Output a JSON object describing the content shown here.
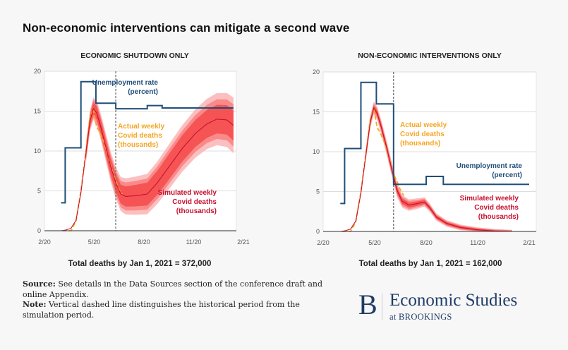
{
  "title": "Non-economic interventions can mitigate a second wave",
  "notes": {
    "source_label": "Source:",
    "source_text": " See details in the Data Sources section of the conference draft and online Appendix.",
    "note_label": "Note:",
    "note_text": " Vertical dashed line distinguishes the historical period from the simulation period."
  },
  "logo": {
    "letter": "B",
    "main": "Economic Studies",
    "sub": "at BROOKINGS"
  },
  "colors": {
    "unemployment": "#1f4e79",
    "actual": "#f5a623",
    "simulated": "#c8102e",
    "band_outer": "#fbb4b4",
    "band_mid": "#f98080",
    "band_inner": "#f44a4a",
    "grid": "#dcdcdc",
    "dashed": "#666666"
  },
  "chart_data": [
    {
      "type": "line",
      "title": "ECONOMIC SHUTDOWN ONLY",
      "footer": "Total deaths by Jan 1, 2021 = 372,000",
      "x_ticks": [
        {
          "value": 0,
          "label": "2/20"
        },
        {
          "value": 3,
          "label": "5/20"
        },
        {
          "value": 6,
          "label": "8/20"
        },
        {
          "value": 9,
          "label": "11/20"
        },
        {
          "value": 12,
          "label": "2/21"
        }
      ],
      "y_ticks": [
        0,
        5,
        10,
        15,
        20
      ],
      "xlim": [
        0,
        12
      ],
      "ylim": [
        0,
        20
      ],
      "grid": true,
      "divider_x": 4.3,
      "labels": {
        "unemployment": [
          "Unemployment rate",
          "(percent)"
        ],
        "actual": [
          "Actual weekly",
          "Covid deaths",
          "(thousands)"
        ],
        "simulated": [
          "Simulated weekly",
          "Covid deaths",
          "(thousands)"
        ]
      },
      "series": [
        {
          "name": "Unemployment rate (percent)",
          "kind": "step",
          "points": [
            [
              1.0,
              3.5
            ],
            [
              1.25,
              3.5
            ],
            [
              1.25,
              10.4
            ],
            [
              2.2,
              10.4
            ],
            [
              2.2,
              18.7
            ],
            [
              3.1,
              18.7
            ],
            [
              3.1,
              16.0
            ],
            [
              4.3,
              16.0
            ],
            [
              4.3,
              15.3
            ],
            [
              6.2,
              15.3
            ],
            [
              6.2,
              15.7
            ],
            [
              7.1,
              15.7
            ],
            [
              7.1,
              15.4
            ],
            [
              11.4,
              15.4
            ]
          ]
        },
        {
          "name": "Actual weekly Covid deaths (thousands)",
          "kind": "dashed",
          "points": [
            [
              1.1,
              0
            ],
            [
              1.6,
              0
            ],
            [
              1.9,
              1.2
            ],
            [
              2.2,
              5
            ],
            [
              2.5,
              10
            ],
            [
              2.75,
              14.2
            ],
            [
              2.95,
              15.3
            ],
            [
              3.15,
              13
            ],
            [
              3.3,
              12.5
            ],
            [
              3.6,
              11
            ],
            [
              3.9,
              8.8
            ],
            [
              4.1,
              7.5
            ],
            [
              4.3,
              6.3
            ],
            [
              4.5,
              5.2
            ],
            [
              4.7,
              4.5
            ]
          ]
        },
        {
          "name": "Simulated weekly Covid deaths (thousands)",
          "kind": "line",
          "points": [
            [
              1.0,
              0
            ],
            [
              1.3,
              0.1
            ],
            [
              1.6,
              0.3
            ],
            [
              1.9,
              1.3
            ],
            [
              2.2,
              4.8
            ],
            [
              2.5,
              9.8
            ],
            [
              2.75,
              13.8
            ],
            [
              2.95,
              15.3
            ],
            [
              3.15,
              14.8
            ],
            [
              3.4,
              13
            ],
            [
              3.7,
              10.5
            ],
            [
              4.0,
              8
            ],
            [
              4.3,
              6
            ],
            [
              4.6,
              4.6
            ],
            [
              4.9,
              4.3
            ],
            [
              5.5,
              4.4
            ],
            [
              6.2,
              4.6
            ],
            [
              6.8,
              6
            ],
            [
              7.5,
              8
            ],
            [
              8.3,
              10.3
            ],
            [
              9.1,
              12.2
            ],
            [
              9.8,
              13.4
            ],
            [
              10.4,
              14
            ],
            [
              11.0,
              13.9
            ],
            [
              11.4,
              13.2
            ]
          ],
          "band_inner": [
            0.3,
            0.6,
            1.0,
            1.5,
            1.8
          ],
          "band_mid_extra": [
            0.4,
            0.9,
            1.4,
            2.0,
            2.5
          ],
          "band_outer_extra": [
            0.6,
            1.1,
            1.8,
            2.6,
            3.3
          ]
        }
      ]
    },
    {
      "type": "line",
      "title": "NON-ECONOMIC INTERVENTIONS ONLY",
      "footer": "Total deaths by Jan 1, 2021 = 162,000",
      "x_ticks": [
        {
          "value": 0,
          "label": "2/20"
        },
        {
          "value": 3,
          "label": "5/20"
        },
        {
          "value": 6,
          "label": "8/20"
        },
        {
          "value": 9,
          "label": "11/20"
        },
        {
          "value": 12,
          "label": "2/21"
        }
      ],
      "y_ticks": [
        0,
        5,
        10,
        15,
        20
      ],
      "xlim": [
        0,
        12
      ],
      "ylim": [
        0,
        20
      ],
      "grid": true,
      "divider_x": 4.1,
      "labels": {
        "unemployment": [
          "Unemployment rate",
          "(percent)"
        ],
        "actual": [
          "Actual weekly",
          "Covid deaths",
          "(thousands)"
        ],
        "simulated": [
          "Simulated weekly",
          "Covid deaths",
          "(thousands)"
        ]
      },
      "series": [
        {
          "name": "Unemployment rate (percent)",
          "kind": "step",
          "points": [
            [
              1.0,
              3.5
            ],
            [
              1.25,
              3.5
            ],
            [
              1.25,
              10.4
            ],
            [
              2.2,
              10.4
            ],
            [
              2.2,
              18.7
            ],
            [
              3.1,
              18.7
            ],
            [
              3.1,
              16.0
            ],
            [
              4.1,
              16.0
            ],
            [
              4.1,
              5.9
            ],
            [
              6.0,
              5.9
            ],
            [
              6.0,
              6.9
            ],
            [
              7.0,
              6.9
            ],
            [
              7.0,
              5.9
            ],
            [
              12.0,
              5.9
            ]
          ]
        },
        {
          "name": "Actual weekly Covid deaths (thousands)",
          "kind": "dashed",
          "points": [
            [
              1.1,
              0
            ],
            [
              1.6,
              0
            ],
            [
              1.9,
              1.2
            ],
            [
              2.2,
              5
            ],
            [
              2.5,
              10
            ],
            [
              2.75,
              14.2
            ],
            [
              2.95,
              15.3
            ],
            [
              3.15,
              13
            ],
            [
              3.3,
              12.5
            ],
            [
              3.6,
              11
            ],
            [
              3.9,
              8.8
            ],
            [
              4.1,
              7.2
            ],
            [
              4.3,
              6.3
            ],
            [
              4.5,
              5.2
            ],
            [
              4.7,
              4.5
            ]
          ]
        },
        {
          "name": "Simulated weekly Covid deaths (thousands)",
          "kind": "line",
          "points": [
            [
              1.0,
              0
            ],
            [
              1.3,
              0.1
            ],
            [
              1.6,
              0.3
            ],
            [
              1.9,
              1.3
            ],
            [
              2.2,
              4.8
            ],
            [
              2.5,
              9.8
            ],
            [
              2.75,
              13.8
            ],
            [
              2.95,
              15.5
            ],
            [
              3.15,
              14.8
            ],
            [
              3.4,
              13
            ],
            [
              3.7,
              10.5
            ],
            [
              4.0,
              7.8
            ],
            [
              4.3,
              5.2
            ],
            [
              4.6,
              3.8
            ],
            [
              5.0,
              3.3
            ],
            [
              5.5,
              3.5
            ],
            [
              5.9,
              3.7
            ],
            [
              6.2,
              3.0
            ],
            [
              6.6,
              1.8
            ],
            [
              7.2,
              1.0
            ],
            [
              8.0,
              0.5
            ],
            [
              9.0,
              0.2
            ],
            [
              10.0,
              0.05
            ],
            [
              11.0,
              0
            ]
          ],
          "band_inner": [
            0.2,
            0.2,
            0.3,
            0.1,
            0
          ],
          "band_mid_extra": [
            0.3,
            0.4,
            0.5,
            0.2,
            0
          ],
          "band_outer_extra": [
            0.5,
            0.6,
            0.7,
            0.3,
            0
          ]
        }
      ]
    }
  ]
}
